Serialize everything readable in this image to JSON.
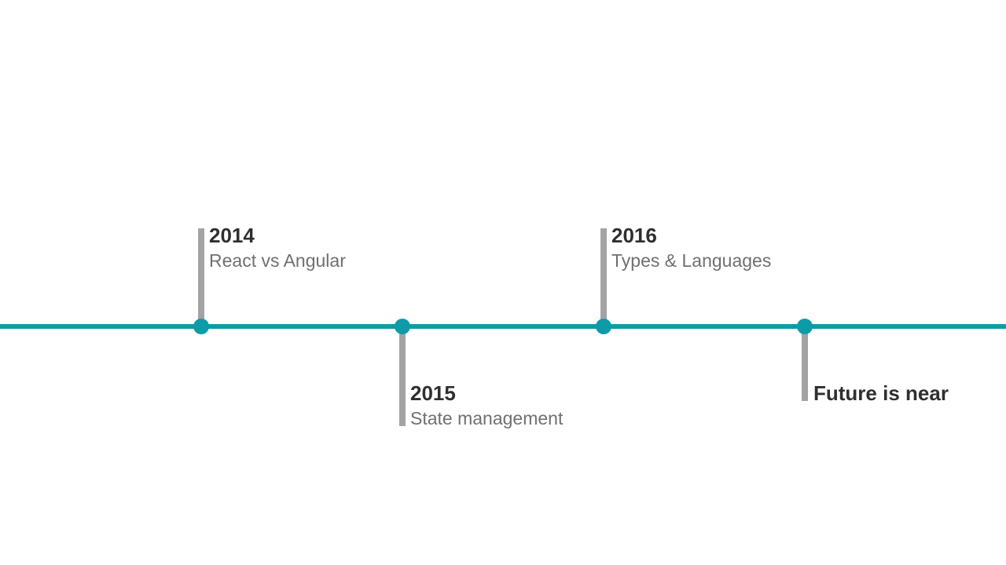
{
  "colors": {
    "line": "#0e9ba8",
    "stem": "#a3a3a3",
    "year_text": "#2f2f2f",
    "desc_text": "#707070",
    "background": "#ffffff"
  },
  "events": [
    {
      "year": "2014",
      "description": "React vs Angular",
      "side": "above"
    },
    {
      "year": "2015",
      "description": "State management",
      "side": "below"
    },
    {
      "year": "2016",
      "description": "Types & Languages",
      "side": "above"
    },
    {
      "year": "Future is near",
      "description": "",
      "side": "below"
    }
  ]
}
